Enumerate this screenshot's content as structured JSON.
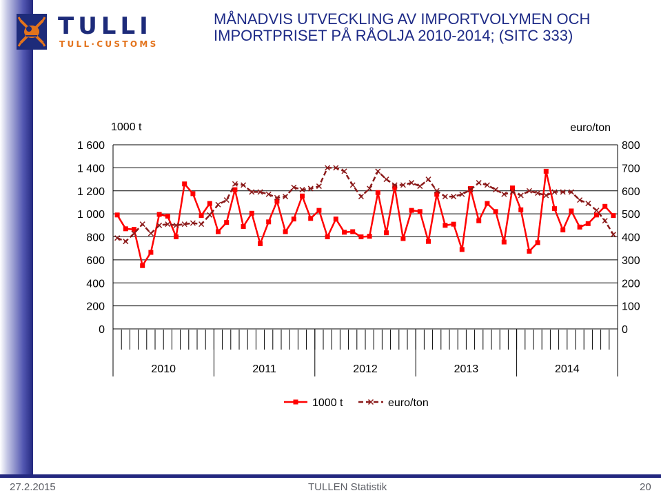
{
  "header": {
    "logo_text": "TULLI",
    "logo_subtext": "TULL·CUSTOMS",
    "title_line1": "MÅNADVIS UTVECKLING AV IMPORTVOLYMEN OCH",
    "title_line2": "IMPORTPRISET PÅ RÅOLJA 2010-2014; (SITC 333)"
  },
  "footer": {
    "date": "27.2.2015",
    "center": "TULLEN Statistik",
    "page": "20"
  },
  "colors": {
    "brand_navy": "#23287f",
    "logo_orange": "#e3731c",
    "series_volume": "#ff0000",
    "series_price": "#8b1a1a"
  },
  "chart_data": {
    "type": "line",
    "title": "",
    "left_unit_label": "1000 t",
    "right_unit_label": "euro/ton",
    "left_ylim": [
      0,
      1600
    ],
    "right_ylim": [
      0,
      800
    ],
    "left_ticks": [
      "0",
      "200",
      "400",
      "600",
      "800",
      "1 000",
      "1 200",
      "1 400",
      "1 600"
    ],
    "right_ticks": [
      "0",
      "100",
      "200",
      "300",
      "400",
      "500",
      "600",
      "700",
      "800"
    ],
    "years": [
      "2010",
      "2011",
      "2012",
      "2013",
      "2014"
    ],
    "months_per_year": 12,
    "grid": "horizontal",
    "legend_position": "bottom",
    "series": [
      {
        "name": "1000 t",
        "axis": "left",
        "marker": "square",
        "color": "#ff0000",
        "values": [
          990,
          870,
          865,
          550,
          665,
          995,
          980,
          800,
          1260,
          1175,
          985,
          1090,
          845,
          925,
          1210,
          890,
          1005,
          740,
          930,
          1110,
          845,
          955,
          1155,
          960,
          1030,
          800,
          955,
          840,
          845,
          800,
          805,
          1185,
          835,
          1230,
          785,
          1030,
          1020,
          760,
          1170,
          900,
          910,
          690,
          1220,
          940,
          1090,
          1020,
          755,
          1225,
          1035,
          675,
          750,
          1370,
          1045,
          860,
          1025,
          885,
          915,
          990,
          1065,
          985
        ]
      },
      {
        "name": "euro/ton",
        "axis": "right",
        "marker": "x",
        "dashed": true,
        "color": "#8b1a1a",
        "values": [
          395,
          380,
          415,
          455,
          415,
          450,
          455,
          450,
          455,
          460,
          455,
          495,
          540,
          560,
          630,
          625,
          595,
          595,
          585,
          570,
          575,
          615,
          605,
          610,
          620,
          700,
          700,
          685,
          625,
          575,
          610,
          685,
          650,
          625,
          625,
          635,
          620,
          650,
          600,
          575,
          575,
          585,
          605,
          635,
          625,
          605,
          585,
          595,
          580,
          600,
          590,
          580,
          595,
          595,
          595,
          560,
          545,
          515,
          470,
          410
        ]
      }
    ]
  }
}
